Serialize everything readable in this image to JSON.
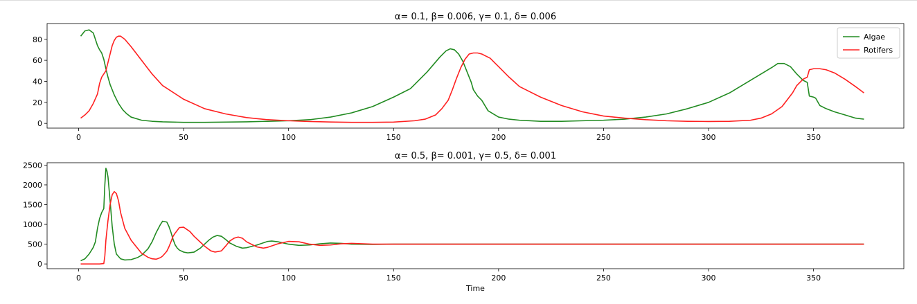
{
  "chart_data": [
    {
      "type": "line",
      "title": "α= 0.1, β=  0.006, γ= 0.1, δ= 0.006",
      "xlabel": "",
      "ylabel": "",
      "xlim": [
        -15,
        393
      ],
      "ylim": [
        -4.5,
        95
      ],
      "xticks": [
        0,
        50,
        100,
        150,
        200,
        250,
        300,
        350
      ],
      "yticks": [
        0,
        20,
        40,
        60,
        80
      ],
      "legend": "top-right",
      "series": [
        {
          "name": "Algae",
          "color": "#228b22",
          "x": [
            1,
            3,
            5,
            7,
            8,
            9,
            10,
            11,
            12,
            13,
            14,
            15,
            17,
            19,
            21,
            23,
            25,
            30,
            35,
            40,
            50,
            60,
            70,
            80,
            90,
            100,
            110,
            120,
            130,
            140,
            150,
            155,
            158,
            160,
            163,
            166,
            169,
            172,
            175,
            177,
            179,
            181,
            183,
            185,
            187,
            188,
            190,
            192,
            195,
            200,
            205,
            210,
            220,
            230,
            240,
            250,
            260,
            270,
            280,
            290,
            300,
            310,
            320,
            325,
            330,
            333,
            336,
            339,
            342,
            345,
            347,
            348,
            350,
            351,
            353,
            356,
            360,
            365,
            370,
            374
          ],
          "y": [
            83,
            88,
            89,
            86,
            80,
            74,
            70,
            67,
            61,
            52,
            44,
            37,
            27,
            19,
            13,
            9,
            6,
            3,
            2,
            1.5,
            1,
            1,
            1.2,
            1.5,
            2,
            2.5,
            3.5,
            6,
            10,
            16,
            25,
            30,
            33,
            37,
            43,
            49,
            56,
            63,
            69,
            71,
            70,
            66,
            59,
            49,
            39,
            32,
            26,
            22,
            12,
            6,
            4,
            3,
            2,
            2,
            2.5,
            3,
            4,
            6,
            9,
            14,
            20,
            29,
            41,
            47,
            53,
            57,
            57,
            54,
            47,
            41,
            39,
            26,
            25,
            24,
            17,
            14,
            11,
            8,
            5,
            4
          ]
        },
        {
          "name": "Rotifers",
          "color": "#ff2020",
          "x": [
            1,
            3,
            5,
            7,
            9,
            10,
            11,
            12,
            13,
            14,
            15,
            16,
            17,
            18,
            19,
            20,
            22,
            25,
            30,
            35,
            40,
            50,
            60,
            70,
            80,
            90,
            100,
            110,
            120,
            130,
            140,
            150,
            160,
            165,
            170,
            173,
            176,
            178,
            180,
            182,
            184,
            186,
            188,
            190,
            192,
            194,
            196,
            198,
            200,
            205,
            210,
            220,
            230,
            240,
            250,
            260,
            270,
            280,
            290,
            300,
            310,
            320,
            325,
            330,
            335,
            340,
            342,
            345,
            347,
            348,
            350,
            353,
            356,
            360,
            365,
            370,
            374
          ],
          "y": [
            5,
            8,
            12,
            19,
            28,
            38,
            44,
            47,
            50,
            58,
            66,
            74,
            79,
            82,
            83,
            83,
            80,
            73,
            60,
            47,
            36,
            23,
            14,
            9,
            5.5,
            3.5,
            2.5,
            1.8,
            1.3,
            1,
            1,
            1.2,
            2.5,
            4,
            8,
            14,
            22,
            32,
            43,
            53,
            61,
            66,
            67,
            67,
            66,
            64,
            62,
            58,
            54,
            44,
            35,
            25,
            17,
            11,
            7,
            5,
            3.5,
            2.5,
            2,
            1.8,
            2,
            3,
            5,
            9,
            16,
            29,
            36,
            42,
            44,
            51,
            52,
            52,
            51,
            48,
            42,
            35,
            29
          ]
        }
      ]
    },
    {
      "type": "line",
      "title": "α= 0.5, β=  0.001, γ= 0.5, δ= 0.001",
      "xlabel": "Time",
      "ylabel": "",
      "xlim": [
        -15,
        393
      ],
      "ylim": [
        -120,
        2560
      ],
      "xticks": [
        0,
        50,
        100,
        150,
        200,
        250,
        300,
        350
      ],
      "yticks": [
        0,
        500,
        1000,
        1500,
        2000,
        2500
      ],
      "legend": "none",
      "series": [
        {
          "name": "Algae",
          "color": "#228b22",
          "x": [
            1,
            3,
            5,
            7,
            8,
            9,
            10,
            11,
            12,
            12.5,
            13,
            13.5,
            14,
            15,
            16,
            17,
            18,
            20,
            22,
            25,
            28,
            30,
            33,
            35,
            37,
            39,
            40,
            42,
            43,
            44,
            45,
            46,
            47,
            48,
            50,
            52,
            55,
            58,
            60,
            62,
            64,
            66,
            68,
            70,
            72,
            75,
            78,
            80,
            85,
            90,
            92,
            95,
            100,
            105,
            110,
            115,
            120,
            125,
            130,
            140,
            150,
            160,
            170,
            180,
            200,
            250,
            300,
            374
          ],
          "y": [
            80,
            130,
            250,
            420,
            560,
            900,
            1150,
            1300,
            1400,
            2000,
            2420,
            2350,
            2200,
            1600,
            950,
            500,
            250,
            130,
            100,
            110,
            160,
            220,
            380,
            560,
            800,
            1000,
            1080,
            1060,
            950,
            800,
            620,
            480,
            400,
            350,
            300,
            280,
            300,
            400,
            500,
            600,
            680,
            720,
            700,
            620,
            530,
            450,
            400,
            410,
            480,
            570,
            580,
            560,
            500,
            470,
            480,
            510,
            530,
            520,
            500,
            495,
            500,
            500,
            500,
            500,
            500,
            500,
            500,
            500
          ]
        },
        {
          "name": "Rotifers",
          "color": "#ff2020",
          "x": [
            1,
            5,
            10,
            12,
            12.5,
            13,
            14,
            15,
            16,
            17,
            18,
            19,
            20,
            22,
            25,
            28,
            30,
            33,
            35,
            37,
            39,
            40,
            42,
            43,
            44,
            45,
            46,
            47,
            48,
            50,
            53,
            55,
            58,
            60,
            63,
            65,
            68,
            70,
            72,
            74,
            76,
            78,
            80,
            83,
            85,
            88,
            90,
            95,
            100,
            105,
            110,
            115,
            120,
            125,
            130,
            140,
            150,
            160,
            180,
            200,
            250,
            300,
            374
          ],
          "y": [
            0,
            0,
            0,
            10,
            200,
            600,
            1100,
            1500,
            1750,
            1830,
            1780,
            1600,
            1300,
            900,
            600,
            400,
            270,
            170,
            130,
            120,
            160,
            200,
            320,
            430,
            560,
            700,
            780,
            850,
            920,
            930,
            820,
            700,
            550,
            450,
            330,
            300,
            330,
            450,
            580,
            650,
            680,
            650,
            560,
            480,
            430,
            400,
            420,
            510,
            570,
            560,
            500,
            470,
            480,
            510,
            520,
            500,
            500,
            500,
            500,
            500,
            500,
            500,
            500
          ]
        }
      ]
    }
  ]
}
